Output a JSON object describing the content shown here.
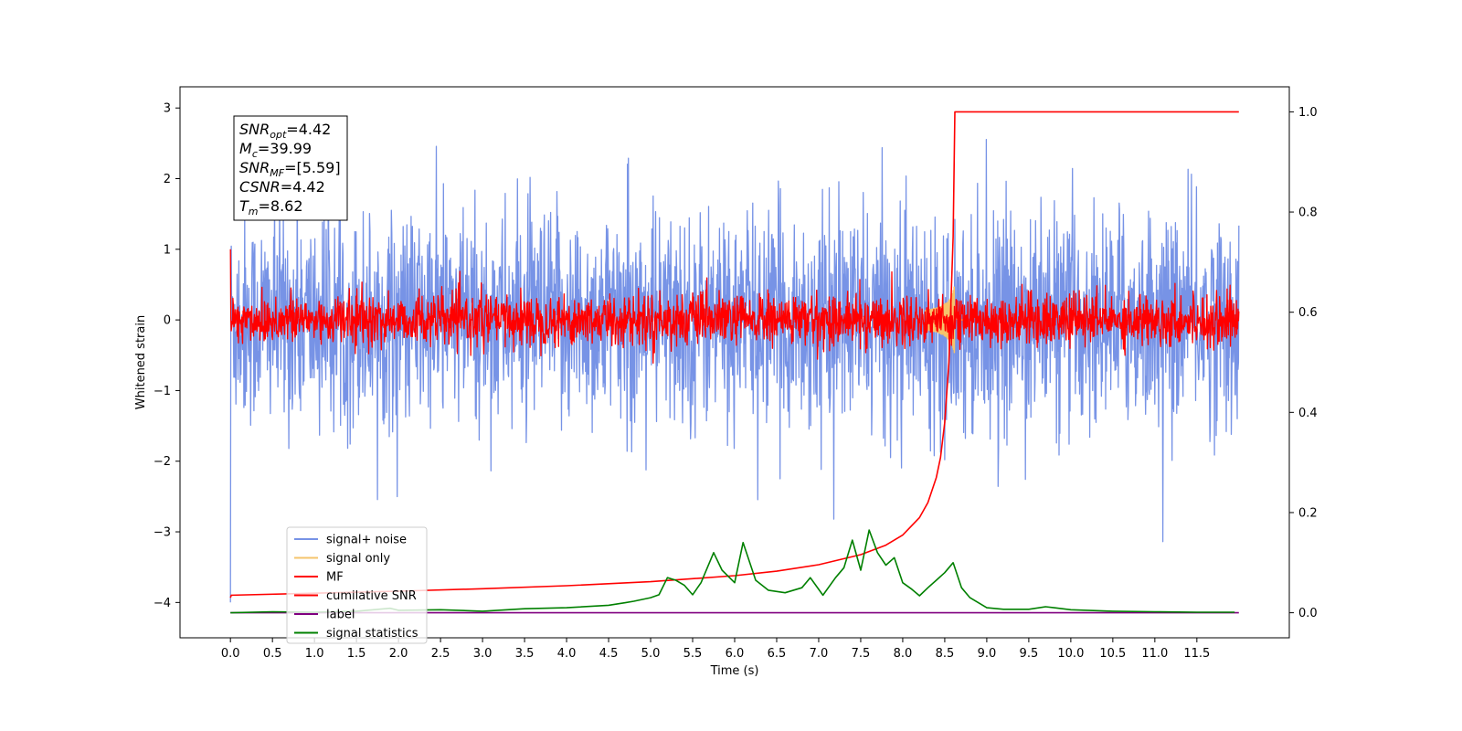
{
  "chart_data": {
    "type": "line",
    "xlabel": "Time (s)",
    "ylabel": "Whitened strain",
    "xlim": [
      -0.6,
      12.6
    ],
    "ylim": [
      -4.5,
      3.3
    ],
    "ylim_right": [
      -0.05,
      1.05
    ],
    "x_ticks": [
      "0.0",
      "0.5",
      "1.0",
      "1.5",
      "2.0",
      "2.5",
      "3.0",
      "3.5",
      "4.0",
      "4.5",
      "5.0",
      "5.5",
      "6.0",
      "6.5",
      "7.0",
      "7.5",
      "8.0",
      "8.5",
      "9.0",
      "9.5",
      "10.0",
      "10.5",
      "11.0",
      "11.5"
    ],
    "y_ticks_left": [
      "3",
      "2",
      "1",
      "0",
      "−1",
      "−2",
      "−3",
      "−4"
    ],
    "y_ticks_right": [
      "1.0",
      "0.8",
      "0.6",
      "0.4",
      "0.2",
      "0.0"
    ],
    "legend_position": "lower-left",
    "grid": false,
    "annotation": {
      "lines": [
        {
          "base": "SNR",
          "sub": "opt",
          "value": "=4.42"
        },
        {
          "base": "M",
          "sub": "c",
          "value": "=39.99"
        },
        {
          "base": "SNR",
          "sub": "MF",
          "value": "=[5.59]"
        },
        {
          "base": "CSNR",
          "sub": "",
          "value": "=4.42"
        },
        {
          "base": "T",
          "sub": "m",
          "value": "=8.62"
        }
      ]
    },
    "series": [
      {
        "name": "signal+ noise",
        "color": "#7793e6",
        "axis": "left",
        "kind": "noise",
        "sigma": 0.75,
        "t_range": [
          0,
          12
        ]
      },
      {
        "name": "signal only",
        "color": "#f5c46c",
        "axis": "left",
        "kind": "chirp",
        "t_merger": 8.62,
        "peak": 0.6
      },
      {
        "name": "MF",
        "color": "#ff0000",
        "axis": "left",
        "kind": "noise",
        "sigma": 0.18,
        "t_range": [
          0,
          12
        ]
      },
      {
        "name": "cumilative SNR",
        "color": "#ff0000",
        "axis": "right",
        "x": [
          0,
          0.01,
          1,
          2,
          3,
          4,
          5,
          6,
          6.5,
          7,
          7.5,
          7.8,
          8.0,
          8.2,
          8.3,
          8.4,
          8.45,
          8.5,
          8.55,
          8.6,
          8.62,
          12.0
        ],
        "values": [
          0.03,
          0.035,
          0.039,
          0.043,
          0.048,
          0.054,
          0.062,
          0.074,
          0.083,
          0.096,
          0.116,
          0.135,
          0.155,
          0.19,
          0.22,
          0.27,
          0.31,
          0.38,
          0.5,
          0.75,
          1.0,
          1.0
        ]
      },
      {
        "name": "label",
        "color": "#800080",
        "axis": "right",
        "x": [
          0,
          12
        ],
        "values": [
          0.0,
          0.0
        ]
      },
      {
        "name": "signal statistics",
        "color": "#008000",
        "axis": "right",
        "x": [
          0,
          0.5,
          1,
          1.5,
          1.9,
          2.0,
          2.5,
          3,
          3.5,
          4,
          4.5,
          4.7,
          4.8,
          5.0,
          5.1,
          5.2,
          5.3,
          5.4,
          5.5,
          5.6,
          5.75,
          5.85,
          6.0,
          6.1,
          6.25,
          6.4,
          6.6,
          6.8,
          6.9,
          7.05,
          7.2,
          7.3,
          7.4,
          7.5,
          7.6,
          7.7,
          7.8,
          7.9,
          8.0,
          8.1,
          8.2,
          8.3,
          8.4,
          8.5,
          8.6,
          8.7,
          8.8,
          9.0,
          9.2,
          9.5,
          9.7,
          9.8,
          10.0,
          10.5,
          11.0,
          11.5,
          11.95
        ],
        "values": [
          0.0,
          0.002,
          0.001,
          0.003,
          0.009,
          0.005,
          0.006,
          0.003,
          0.008,
          0.01,
          0.015,
          0.02,
          0.023,
          0.03,
          0.036,
          0.07,
          0.065,
          0.055,
          0.036,
          0.06,
          0.12,
          0.085,
          0.06,
          0.14,
          0.065,
          0.045,
          0.04,
          0.05,
          0.07,
          0.035,
          0.07,
          0.09,
          0.145,
          0.085,
          0.165,
          0.12,
          0.095,
          0.11,
          0.06,
          0.048,
          0.034,
          0.05,
          0.065,
          0.08,
          0.1,
          0.05,
          0.03,
          0.01,
          0.007,
          0.007,
          0.012,
          0.01,
          0.006,
          0.003,
          0.002,
          0.001,
          0.001
        ]
      }
    ]
  }
}
